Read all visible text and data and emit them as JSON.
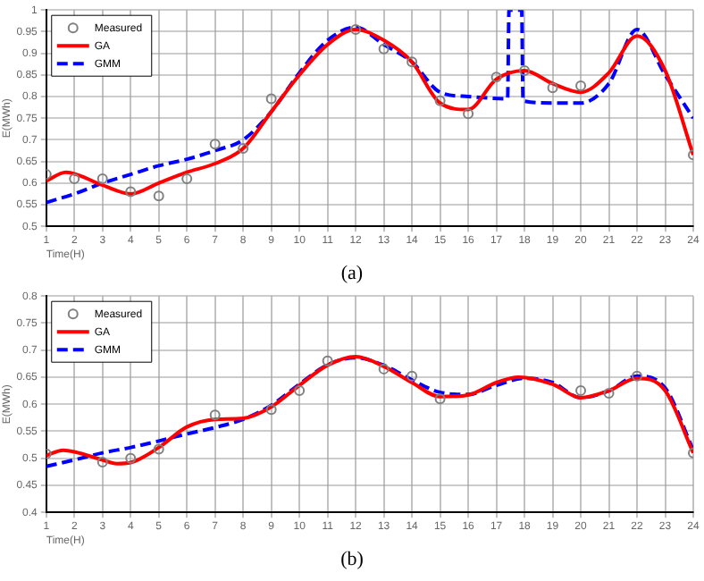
{
  "chart_data": [
    {
      "type": "line",
      "xlabel": "Time(H)",
      "ylabel": "E(MWh)",
      "annotations": [
        "(a)"
      ],
      "xlim": [
        1,
        24
      ],
      "xticks": [
        1,
        2,
        3,
        4,
        5,
        6,
        7,
        8,
        9,
        10,
        11,
        12,
        13,
        14,
        15,
        16,
        17,
        18,
        19,
        20,
        21,
        22,
        23,
        24
      ],
      "ylim": [
        0.5,
        1
      ],
      "yticks": [
        0.5,
        0.55,
        0.6,
        0.65,
        0.7,
        0.75,
        0.8,
        0.85,
        0.9,
        0.95,
        1
      ],
      "grid": true,
      "legend": "top left",
      "series": [
        {
          "name": "Measured",
          "type": "scatter",
          "marker": "circle",
          "color": "#808080",
          "x": [
            1,
            2,
            3,
            4,
            5,
            6,
            7,
            8,
            9,
            12,
            13,
            14,
            15,
            16,
            17,
            18,
            19,
            20,
            24
          ],
          "values": [
            0.62,
            0.61,
            0.61,
            0.58,
            0.57,
            0.61,
            0.69,
            0.68,
            0.795,
            0.955,
            0.91,
            0.88,
            0.79,
            0.76,
            0.845,
            0.86,
            0.82,
            0.825,
            0.665
          ]
        },
        {
          "name": "GA",
          "line_style": "solid",
          "color": "#ff0000",
          "x": [
            1,
            1.7,
            3,
            4,
            5,
            6,
            7,
            8,
            9,
            10,
            11,
            12,
            13,
            14,
            15,
            16,
            17,
            18,
            19,
            20,
            21,
            22,
            23,
            24
          ],
          "values": [
            0.605,
            0.625,
            0.595,
            0.575,
            0.6,
            0.625,
            0.645,
            0.68,
            0.765,
            0.85,
            0.92,
            0.955,
            0.93,
            0.88,
            0.785,
            0.77,
            0.84,
            0.86,
            0.83,
            0.81,
            0.855,
            0.94,
            0.86,
            0.665
          ]
        },
        {
          "name": "GMM",
          "line_style": "dashed",
          "color": "#0000ff",
          "x": [
            1,
            2,
            3,
            4,
            5,
            6,
            7,
            8,
            9,
            10,
            11,
            12,
            13,
            14,
            15,
            16,
            17.4,
            17.45,
            17.9,
            17.95,
            19,
            20,
            21,
            22,
            23,
            24
          ],
          "values": [
            0.555,
            0.575,
            0.6,
            0.62,
            0.64,
            0.655,
            0.675,
            0.7,
            0.765,
            0.855,
            0.93,
            0.96,
            0.92,
            0.88,
            0.81,
            0.8,
            0.795,
            1,
            1,
            0.79,
            0.785,
            0.785,
            0.83,
            0.955,
            0.85,
            0.75
          ]
        }
      ]
    },
    {
      "type": "line",
      "xlabel": "Time(H)",
      "ylabel": "E(MWh)",
      "annotations": [
        "(b)"
      ],
      "xlim": [
        1,
        24
      ],
      "xticks": [
        1,
        2,
        3,
        4,
        5,
        6,
        7,
        8,
        9,
        10,
        11,
        12,
        13,
        14,
        15,
        16,
        17,
        18,
        19,
        20,
        21,
        22,
        23,
        24
      ],
      "ylim": [
        0.4,
        0.8
      ],
      "yticks": [
        0.4,
        0.45,
        0.5,
        0.55,
        0.6,
        0.65,
        0.7,
        0.75,
        0.8
      ],
      "grid": true,
      "legend": "top left",
      "series": [
        {
          "name": "Measured",
          "type": "scatter",
          "marker": "circle",
          "color": "#808080",
          "x": [
            1,
            3,
            4,
            5,
            7,
            9,
            10,
            11,
            13,
            14,
            15,
            20,
            21,
            22,
            24
          ],
          "values": [
            0.508,
            0.493,
            0.5,
            0.517,
            0.58,
            0.59,
            0.625,
            0.68,
            0.665,
            0.652,
            0.61,
            0.625,
            0.62,
            0.652,
            0.51
          ]
        },
        {
          "name": "GA",
          "line_style": "solid",
          "color": "#ff0000",
          "x": [
            1,
            1.6,
            2,
            3,
            3.5,
            4,
            5,
            6,
            7,
            8,
            9,
            10,
            11,
            12,
            13,
            14,
            15,
            16,
            17,
            17.8,
            19,
            20,
            21,
            22,
            23,
            24
          ],
          "values": [
            0.505,
            0.515,
            0.512,
            0.497,
            0.49,
            0.492,
            0.52,
            0.558,
            0.572,
            0.574,
            0.595,
            0.635,
            0.672,
            0.688,
            0.67,
            0.64,
            0.614,
            0.617,
            0.64,
            0.65,
            0.637,
            0.612,
            0.625,
            0.648,
            0.625,
            0.51
          ]
        },
        {
          "name": "GMM",
          "line_style": "dashed",
          "color": "#0000ff",
          "x": [
            1,
            2,
            3,
            4,
            5,
            6,
            7,
            8,
            9,
            10,
            11,
            12,
            13,
            14,
            15,
            16,
            17,
            18,
            19,
            20,
            21,
            22,
            23,
            24
          ],
          "values": [
            0.485,
            0.497,
            0.51,
            0.52,
            0.532,
            0.545,
            0.557,
            0.572,
            0.598,
            0.637,
            0.673,
            0.686,
            0.672,
            0.645,
            0.622,
            0.618,
            0.635,
            0.648,
            0.64,
            0.612,
            0.625,
            0.652,
            0.63,
            0.515
          ]
        }
      ]
    }
  ]
}
